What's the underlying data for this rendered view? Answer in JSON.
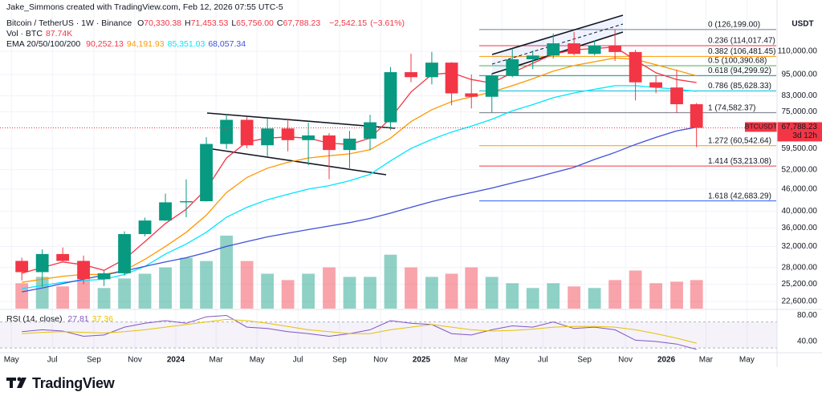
{
  "header": {
    "credit": "Jake_Simmons created with TradingView.com, Feb 12, 2026 07:55 UTC-5",
    "brand": "TradingView"
  },
  "chart_data": {
    "type": "candlestick",
    "symbol_title": "Bitcoin / TetherUS · 1W · Binance",
    "ohlc_legend": [
      {
        "prefix": "O",
        "value": 70330.38,
        "label": "70,330.38"
      },
      {
        "prefix": "H",
        "value": 71453.53,
        "label": "71,453.53"
      },
      {
        "prefix": "L",
        "value": 65756.0,
        "label": "65,756.00"
      },
      {
        "prefix": "C",
        "value": 67788.23,
        "label": "67,788.23"
      }
    ],
    "change": {
      "value": -2542.15,
      "label": "−2,542.15"
    },
    "change_pct": {
      "value": -3.61,
      "label": "(−3.61%)"
    },
    "axis_title": "USDT",
    "log_scale": true,
    "grid": true,
    "up_color": "#089981",
    "down_color": "#f23645",
    "x": [
      "2023-05",
      "2023-06",
      "2023-07",
      "2023-08",
      "2023-09",
      "2023-10",
      "2023-11",
      "2023-12",
      "2024-01",
      "2024-02",
      "2024-03",
      "2024-04",
      "2024-05",
      "2024-06",
      "2024-07",
      "2024-08",
      "2024-09",
      "2024-10",
      "2024-11",
      "2024-12",
      "2025-01",
      "2025-02",
      "2025-03",
      "2025-04",
      "2025-05",
      "2025-06",
      "2025-07",
      "2025-08",
      "2025-09",
      "2025-10",
      "2025-11",
      "2025-12",
      "2026-01",
      "2026-02"
    ],
    "open": [
      29200,
      27200,
      30500,
      29200,
      26000,
      27000,
      34600,
      37700,
      42300,
      42600,
      61200,
      71300,
      60700,
      67500,
      62700,
      64600,
      58900,
      63300,
      70200,
      96400,
      93400,
      102400,
      84300,
      82500,
      94200,
      104600,
      107100,
      115700,
      108200,
      114000,
      109500,
      90400,
      87500,
      78700
    ],
    "high": [
      29800,
      31400,
      31800,
      30200,
      27400,
      35200,
      38400,
      44700,
      48900,
      63900,
      73800,
      72700,
      71900,
      71900,
      70000,
      65600,
      66500,
      73600,
      99600,
      108300,
      109600,
      102700,
      95000,
      95700,
      112000,
      110600,
      123200,
      124400,
      117900,
      126199,
      111000,
      94600,
      97900,
      79300
    ],
    "low": [
      25800,
      24800,
      28900,
      25200,
      24900,
      26600,
      34100,
      37600,
      38500,
      42500,
      59300,
      59600,
      56500,
      58400,
      53500,
      49000,
      52500,
      58900,
      66800,
      90500,
      89200,
      78200,
      76600,
      74500,
      93300,
      98200,
      105100,
      107300,
      107200,
      103500,
      80600,
      84400,
      74500,
      60000
    ],
    "close": [
      27200,
      30500,
      29200,
      26000,
      27000,
      34600,
      37700,
      42300,
      42600,
      61200,
      71300,
      60700,
      67500,
      62700,
      64600,
      58900,
      63300,
      70200,
      96400,
      93400,
      102400,
      84300,
      82500,
      94200,
      104600,
      107100,
      115700,
      108200,
      114000,
      109500,
      90400,
      87500,
      78700,
      67788.23
    ],
    "xlim": [
      "2023-04-14",
      "2026-06-15"
    ],
    "xticks": [
      {
        "value": "2023-05-01",
        "label": "May"
      },
      {
        "value": "2023-07-01",
        "label": "Jul"
      },
      {
        "value": "2023-09-01",
        "label": "Sep"
      },
      {
        "value": "2023-11-01",
        "label": "Nov"
      },
      {
        "value": "2024-01-01",
        "label": "2024"
      },
      {
        "value": "2024-03-01",
        "label": "Mar"
      },
      {
        "value": "2024-05-01",
        "label": "May"
      },
      {
        "value": "2024-07-01",
        "label": "Jul"
      },
      {
        "value": "2024-09-01",
        "label": "Sep"
      },
      {
        "value": "2024-11-01",
        "label": "Nov"
      },
      {
        "value": "2025-01-01",
        "label": "2025"
      },
      {
        "value": "2025-03-01",
        "label": "Mar"
      },
      {
        "value": "2025-05-01",
        "label": "May"
      },
      {
        "value": "2025-07-01",
        "label": "Jul"
      },
      {
        "value": "2025-09-01",
        "label": "Sep"
      },
      {
        "value": "2025-11-01",
        "label": "Nov"
      },
      {
        "value": "2026-01-01",
        "label": "2026"
      },
      {
        "value": "2026-03-01",
        "label": "Mar"
      },
      {
        "value": "2026-05-01",
        "label": "May"
      }
    ],
    "ylim": [
      21590,
      152200
    ],
    "yticks": [
      {
        "value": 110000,
        "label": "110,000.00"
      },
      {
        "value": 95000,
        "label": "95,000.00"
      },
      {
        "value": 83000,
        "label": "83,000.00"
      },
      {
        "value": 75000,
        "label": "75,000.00"
      },
      {
        "value": 59500,
        "label": "59,500.00"
      },
      {
        "value": 52000,
        "label": "52,000.00"
      },
      {
        "value": 46000,
        "label": "46,000.00"
      },
      {
        "value": 40000,
        "label": "40,000.00"
      },
      {
        "value": 36000,
        "label": "36,000.00"
      },
      {
        "value": 32000,
        "label": "32,000.00"
      },
      {
        "value": 28000,
        "label": "28,000.00"
      },
      {
        "value": 25200,
        "label": "25,200.00"
      },
      {
        "value": 22600,
        "label": "22,600.00"
      }
    ],
    "last_price": {
      "symbol": "BTCUSDT",
      "value": 67788.23,
      "label": "67,788.23",
      "countdown": "3d 12h"
    },
    "fib": [
      {
        "price": 126199.0,
        "label": "0 (126,199.00)",
        "color": "#787b86"
      },
      {
        "price": 114017.47,
        "label": "0.236 (114,017.47)",
        "color": "#f23645"
      },
      {
        "price": 106481.45,
        "label": "0.382 (106,481.45)",
        "color": "#ff9800"
      },
      {
        "price": 100390.68,
        "label": "0.5 (100,390.68)",
        "color": "#4caf50"
      },
      {
        "price": 94299.92,
        "label": "0.618 (94,299.92)",
        "color": "#089981"
      },
      {
        "price": 85628.33,
        "label": "0.786 (85,628.33)",
        "color": "#00bcd4"
      },
      {
        "price": 74582.37,
        "label": "1 (74,582.37)",
        "color": "#787b86"
      },
      {
        "price": 60542.64,
        "label": "1.272 (60,542.64)",
        "color": "#ff9800"
      },
      {
        "price": 53213.08,
        "label": "1.414 (53,213.08)",
        "color": "#f23645"
      },
      {
        "price": 42683.29,
        "label": "1.618 (42,683.29)",
        "color": "#2962ff"
      }
    ],
    "volume": {
      "title": "Vol · BTC",
      "last": {
        "value": 87740,
        "label": "87.74K"
      },
      "vollim": [
        0,
        2400000
      ],
      "up_color": "rgba(8,153,129,0.45)",
      "down_color": "rgba(242,54,69,0.45)",
      "values": [
        800000,
        1000000,
        700000,
        900000,
        650000,
        950000,
        1100000,
        1300000,
        1600000,
        1500000,
        2300000,
        1500000,
        1100000,
        900000,
        1100000,
        1300000,
        1000000,
        1000000,
        1700000,
        1300000,
        1000000,
        1100000,
        1300000,
        1000000,
        800000,
        650000,
        800000,
        700000,
        650000,
        900000,
        1200000,
        800000,
        850000,
        900000
      ]
    },
    "ema": {
      "title": "EMA 20/50/100/200",
      "series": [
        {
          "color": "#f23645",
          "last": {
            "value": 90252.13,
            "label": "90,252.13"
          },
          "values": [
            27000,
            28000,
            29000,
            28500,
            27500,
            29500,
            33000,
            37000,
            40500,
            46000,
            56000,
            62000,
            63500,
            64000,
            63500,
            61500,
            61000,
            63500,
            72000,
            85000,
            95000,
            96000,
            92000,
            90000,
            96000,
            102000,
            108000,
            111000,
            112000,
            113000,
            104000,
            96000,
            92000,
            90252.13
          ]
        },
        {
          "color": "#ff9800",
          "last": {
            "value": 94191.93,
            "label": "94,191.93"
          },
          "values": [
            25500,
            26000,
            26500,
            26800,
            26800,
            27500,
            29500,
            32000,
            35000,
            39000,
            45000,
            49500,
            52500,
            54500,
            56000,
            56800,
            57500,
            59000,
            63500,
            70500,
            76000,
            80000,
            82500,
            85000,
            88500,
            92500,
            97000,
            100500,
            103000,
            105500,
            104500,
            101000,
            97500,
            94191.93
          ]
        },
        {
          "color": "#00e5ff",
          "last": {
            "value": 85351.03,
            "label": "85,351.03"
          },
          "values": [
            24500,
            25000,
            25500,
            25800,
            26000,
            26800,
            28200,
            30500,
            32500,
            35000,
            38500,
            41000,
            43000,
            44500,
            46000,
            47000,
            48500,
            50500,
            55000,
            59500,
            63000,
            66000,
            68500,
            71500,
            75500,
            78500,
            82000,
            84500,
            86500,
            88500,
            88500,
            87500,
            86500,
            85351.03
          ]
        },
        {
          "color": "#3f51d8",
          "last": {
            "value": 68057.34,
            "label": "68,057.34"
          },
          "values": [
            24000,
            24600,
            25300,
            26000,
            26700,
            27400,
            28200,
            29000,
            29800,
            30800,
            32000,
            33000,
            34000,
            34800,
            35600,
            36400,
            37200,
            38200,
            39500,
            41000,
            42500,
            43800,
            45000,
            46300,
            47800,
            49300,
            51000,
            52800,
            55500,
            58000,
            61000,
            63800,
            66500,
            68057.34
          ]
        }
      ]
    },
    "rsi": {
      "title": "RSI (14, close)",
      "ylim": [
        22.7,
        89.3
      ],
      "yticks": [
        {
          "value": 80,
          "label": "80.00"
        },
        {
          "value": 40,
          "label": "40.00"
        }
      ],
      "band": [
        70,
        30
      ],
      "series": [
        {
          "color": "#7e57c2",
          "last": {
            "value": 27.81,
            "label": "27.81"
          },
          "values": [
            55,
            58,
            56,
            48,
            50,
            62,
            68,
            72,
            68,
            78,
            80,
            62,
            60,
            55,
            52,
            48,
            52,
            58,
            72,
            68,
            66,
            52,
            50,
            58,
            64,
            62,
            70,
            60,
            62,
            58,
            42,
            40,
            36,
            27.81
          ]
        },
        {
          "color": "#e6c200",
          "last": {
            "value": 37.36,
            "label": "37.36"
          },
          "values": [
            52,
            54,
            55,
            54,
            53,
            55,
            58,
            62,
            66,
            70,
            74,
            72,
            68,
            63,
            58,
            55,
            52,
            52,
            58,
            62,
            66,
            62,
            58,
            56,
            57,
            59,
            62,
            63,
            63,
            62,
            58,
            52,
            45,
            37.36
          ]
        }
      ]
    }
  }
}
